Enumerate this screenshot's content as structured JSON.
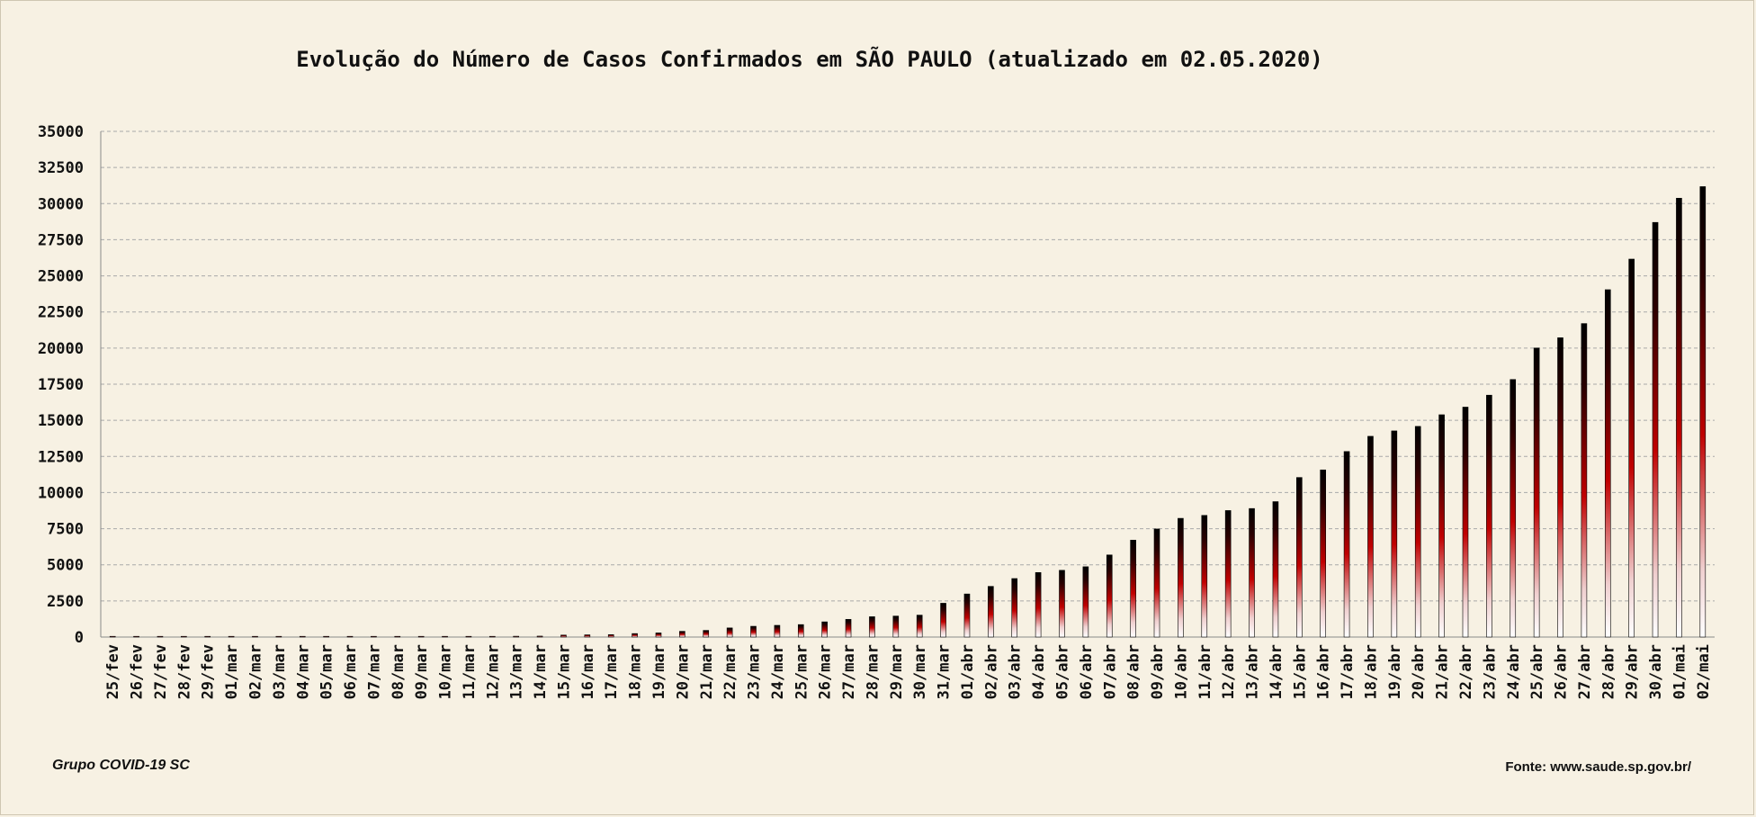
{
  "chart_data": {
    "type": "bar",
    "title": "Evolução do Número de Casos Confirmados em SÃO PAULO (atualizado em 02.05.2020)",
    "xlabel": "",
    "ylabel": "",
    "ylim": [
      0,
      35000
    ],
    "yticks": [
      0,
      2500,
      5000,
      7500,
      10000,
      12500,
      15000,
      17500,
      20000,
      22500,
      25000,
      27500,
      30000,
      32500,
      35000
    ],
    "grid": true,
    "legend": "none",
    "categories": [
      "25/fev",
      "26/fev",
      "27/fev",
      "28/fev",
      "29/fev",
      "01/mar",
      "02/mar",
      "03/mar",
      "04/mar",
      "05/mar",
      "06/mar",
      "07/mar",
      "08/mar",
      "09/mar",
      "10/mar",
      "11/mar",
      "12/mar",
      "13/mar",
      "14/mar",
      "15/mar",
      "16/mar",
      "17/mar",
      "18/mar",
      "19/mar",
      "20/mar",
      "21/mar",
      "22/mar",
      "23/mar",
      "24/mar",
      "25/mar",
      "26/mar",
      "27/mar",
      "28/mar",
      "29/mar",
      "30/mar",
      "31/mar",
      "01/abr",
      "02/abr",
      "03/abr",
      "04/abr",
      "05/abr",
      "06/abr",
      "07/abr",
      "08/abr",
      "09/abr",
      "10/abr",
      "11/abr",
      "12/abr",
      "13/abr",
      "14/abr",
      "15/abr",
      "16/abr",
      "17/abr",
      "18/abr",
      "19/abr",
      "20/abr",
      "21/abr",
      "22/abr",
      "23/abr",
      "24/abr",
      "25/abr",
      "26/abr",
      "27/abr",
      "28/abr",
      "29/abr",
      "30/abr",
      "01/mai",
      "02/mai"
    ],
    "values": [
      1,
      1,
      1,
      2,
      2,
      2,
      2,
      2,
      3,
      6,
      10,
      13,
      16,
      16,
      19,
      30,
      42,
      56,
      65,
      136,
      152,
      164,
      240,
      286,
      396,
      459,
      631,
      745,
      810,
      862,
      1052,
      1223,
      1406,
      1451,
      1517,
      2339,
      2981,
      3506,
      4048,
      4466,
      4620,
      4866,
      5682,
      6708,
      7480,
      8216,
      8419,
      8755,
      8895,
      9371,
      11043,
      11568,
      12841,
      13894,
      14267,
      14580,
      15385,
      15914,
      16740,
      17826,
      20004,
      20715,
      21696,
      24041,
      26158,
      28698,
      30374,
      31174
    ],
    "colors": {
      "background": "#f7f1e3",
      "bar_top": "#000000",
      "bar_mid": "#c00000",
      "bar_bottom": "#ffffff",
      "grid": "#a9a9a9"
    }
  },
  "footer": {
    "left": "Grupo COVID-19 SC",
    "right": "Fonte: www.saude.sp.gov.br/"
  }
}
